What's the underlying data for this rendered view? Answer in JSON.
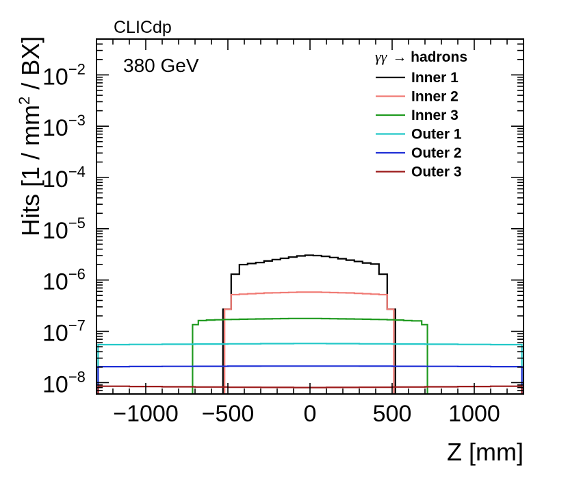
{
  "chart_data": {
    "type": "line",
    "title": "",
    "experiment_label": "CLICdp",
    "energy_label": "380 GeV",
    "xlabel": "Z [mm]",
    "ylabel": "Hits [1 / mm",
    "ylabel_sup": "2",
    "ylabel_tail": " / BX]",
    "xlim": [
      -1300,
      1300
    ],
    "ylog": true,
    "ylim": [
      6e-09,
      0.05
    ],
    "x_ticks": [
      -1000,
      -500,
      0,
      500,
      1000
    ],
    "x_tick_labels": [
      "−1000",
      "−500",
      "0",
      "500",
      "1000"
    ],
    "y_ticks": [
      {
        "value": 1e-08,
        "base": "10",
        "exp": "−8"
      },
      {
        "value": 1e-07,
        "base": "10",
        "exp": "−7"
      },
      {
        "value": 1e-06,
        "base": "10",
        "exp": "−6"
      },
      {
        "value": 1e-05,
        "base": "10",
        "exp": "−5"
      },
      {
        "value": 0.0001,
        "base": "10",
        "exp": "−4"
      },
      {
        "value": 0.001,
        "base": "10",
        "exp": "−3"
      },
      {
        "value": 0.01,
        "base": "10",
        "exp": "−2"
      }
    ],
    "legend_title": "γγ",
    "legend_title_suffix": "→ hadrons",
    "legend_position": "top-right",
    "series": [
      {
        "name": "Inner 1",
        "color": "#000000",
        "edges": [
          -530,
          -480,
          -430,
          -380,
          -330,
          -280,
          -230,
          -180,
          -130,
          -80,
          -30,
          20,
          70,
          120,
          170,
          220,
          270,
          320,
          370,
          420,
          470,
          520
        ],
        "values": [
          2.7e-07,
          1.3e-06,
          2e-06,
          2.1e-06,
          2.2e-06,
          2.35e-06,
          2.5e-06,
          2.65e-06,
          2.8e-06,
          2.95e-06,
          3.05e-06,
          3e-06,
          2.9e-06,
          2.75e-06,
          2.6e-06,
          2.45e-06,
          2.3e-06,
          2.15e-06,
          2.05e-06,
          1.3e-06,
          2.7e-07
        ]
      },
      {
        "name": "Inner 2",
        "color": "#f07a74",
        "edges": [
          -520,
          -480,
          -430,
          -380,
          -330,
          -280,
          -230,
          -180,
          -130,
          -80,
          -30,
          20,
          70,
          120,
          170,
          220,
          270,
          320,
          370,
          420,
          470,
          510
        ],
        "values": [
          2.7e-07,
          5.2e-07,
          5.3e-07,
          5.4e-07,
          5.5e-07,
          5.6e-07,
          5.65e-07,
          5.7e-07,
          5.75e-07,
          5.8e-07,
          5.8e-07,
          5.8e-07,
          5.75e-07,
          5.7e-07,
          5.65e-07,
          5.6e-07,
          5.5e-07,
          5.4e-07,
          5.3e-07,
          5.2e-07,
          2.7e-07
        ]
      },
      {
        "name": "Inner 3",
        "color": "#1f9a1f",
        "edges": [
          -715,
          -680,
          -630,
          -580,
          -530,
          -480,
          -430,
          -380,
          -330,
          -280,
          -230,
          -180,
          -130,
          -80,
          -30,
          20,
          70,
          120,
          170,
          220,
          270,
          320,
          370,
          420,
          470,
          520,
          570,
          620,
          680,
          715
        ],
        "values": [
          1.35e-07,
          1.62e-07,
          1.66e-07,
          1.68e-07,
          1.7e-07,
          1.71e-07,
          1.72e-07,
          1.73e-07,
          1.74e-07,
          1.75e-07,
          1.76e-07,
          1.77e-07,
          1.78e-07,
          1.78e-07,
          1.78e-07,
          1.78e-07,
          1.77e-07,
          1.76e-07,
          1.75e-07,
          1.74e-07,
          1.73e-07,
          1.72e-07,
          1.71e-07,
          1.7e-07,
          1.68e-07,
          1.66e-07,
          1.62e-07,
          1.6e-07,
          1.35e-07
        ]
      },
      {
        "name": "Outer 1",
        "color": "#22c8c8",
        "edges": [
          -1290,
          -1100,
          -900,
          -700,
          -500,
          -300,
          -100,
          100,
          300,
          500,
          700,
          900,
          1100,
          1290
        ],
        "values": [
          5.5e-08,
          5.55e-08,
          5.6e-08,
          5.65e-08,
          5.7e-08,
          5.75e-08,
          5.8e-08,
          5.75e-08,
          5.7e-08,
          5.65e-08,
          5.6e-08,
          5.55e-08,
          5.5e-08
        ]
      },
      {
        "name": "Outer 2",
        "color": "#1f2fd6",
        "edges": [
          -1290,
          -1100,
          -900,
          -700,
          -500,
          -300,
          -100,
          100,
          300,
          500,
          700,
          900,
          1100,
          1290
        ],
        "values": [
          2.05e-08,
          2.06e-08,
          2.07e-08,
          2.08e-08,
          2.09e-08,
          2.1e-08,
          2.1e-08,
          2.1e-08,
          2.09e-08,
          2.08e-08,
          2.07e-08,
          2.06e-08,
          2.05e-08
        ]
      },
      {
        "name": "Outer 3",
        "color": "#9c1a1a",
        "edges": [
          -1290,
          -1100,
          -900,
          -700,
          -500,
          -300,
          -100,
          100,
          300,
          500,
          700,
          900,
          1100,
          1290
        ],
        "values": [
          8.5e-09,
          8.4e-09,
          8.3e-09,
          8.2e-09,
          8.1e-09,
          8.05e-09,
          8e-09,
          8.05e-09,
          8.1e-09,
          8.2e-09,
          8.3e-09,
          8.4e-09,
          8.5e-09
        ]
      }
    ]
  }
}
